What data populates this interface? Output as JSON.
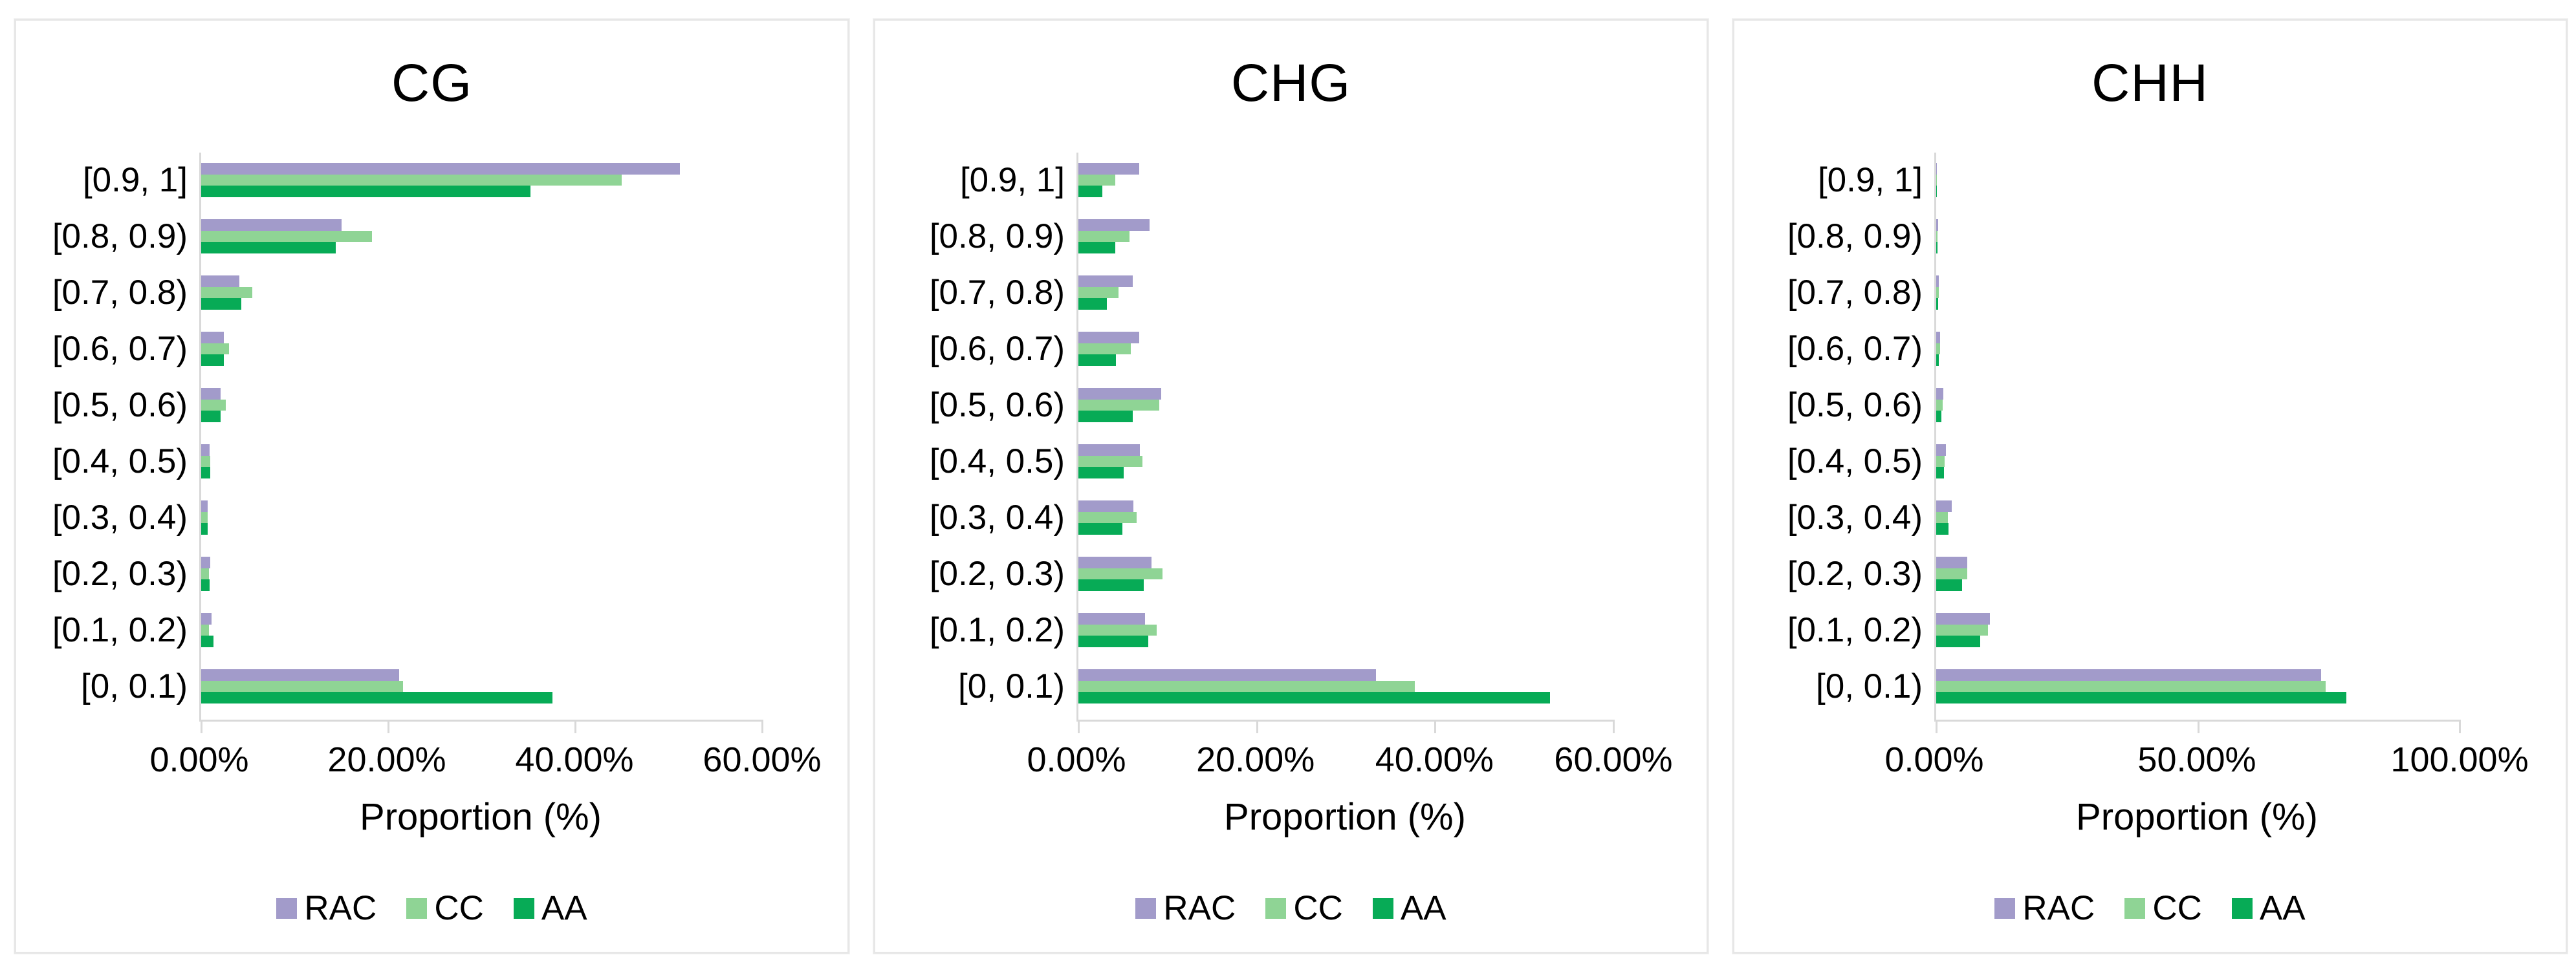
{
  "figure": {
    "description": "Three horizontal grouped bar charts of methylation level proportions",
    "legend_labels": [
      "RAC",
      "CC",
      "AA"
    ],
    "colors": {
      "RAC": "#a29bca",
      "CC": "#8fd495",
      "AA": "#07ab56",
      "axis": "#d9d9d9",
      "panel_border": "#e7e7e7"
    }
  },
  "chart_data": [
    {
      "type": "bar",
      "orientation": "horizontal",
      "title": "CG",
      "xlabel": "Proportion (%)",
      "categories": [
        "[0.9, 1]",
        "[0.8, 0.9)",
        "[0.7, 0.8)",
        "[0.6, 0.7)",
        "[0.5, 0.6)",
        "[0.4, 0.5)",
        "[0.3, 0.4)",
        "[0.2, 0.3)",
        "[0.1, 0.2)",
        "[0, 0.1)"
      ],
      "series": [
        {
          "name": "RAC",
          "color": "#a29bca",
          "values": [
            51.2,
            15.0,
            4.1,
            2.4,
            2.1,
            0.9,
            0.7,
            1.0,
            1.1,
            21.2
          ]
        },
        {
          "name": "CC",
          "color": "#8fd495",
          "values": [
            45.0,
            18.3,
            5.5,
            3.0,
            2.6,
            1.0,
            0.7,
            0.8,
            0.8,
            21.6
          ]
        },
        {
          "name": "AA",
          "color": "#07ab56",
          "values": [
            35.2,
            14.4,
            4.3,
            2.4,
            2.1,
            1.0,
            0.7,
            0.9,
            1.3,
            37.6
          ]
        }
      ],
      "ticks": [
        "0.00%",
        "20.00%",
        "40.00%",
        "60.00%"
      ],
      "tick_positions": [
        0,
        20,
        40,
        60
      ],
      "xlim": [
        0,
        60
      ],
      "grid": false,
      "legend_position": "bottom"
    },
    {
      "type": "bar",
      "orientation": "horizontal",
      "title": "CHG",
      "xlabel": "Proportion (%)",
      "categories": [
        "[0.9, 1]",
        "[0.8, 0.9)",
        "[0.7, 0.8)",
        "[0.6, 0.7)",
        "[0.5, 0.6)",
        "[0.4, 0.5)",
        "[0.3, 0.4)",
        "[0.2, 0.3)",
        "[0.1, 0.2)",
        "[0, 0.1)"
      ],
      "series": [
        {
          "name": "RAC",
          "color": "#a29bca",
          "values": [
            6.8,
            8.0,
            6.1,
            6.8,
            9.3,
            6.9,
            6.2,
            8.2,
            7.5,
            33.4
          ]
        },
        {
          "name": "CC",
          "color": "#8fd495",
          "values": [
            4.1,
            5.7,
            4.5,
            5.9,
            9.1,
            7.2,
            6.5,
            9.4,
            8.8,
            37.7
          ]
        },
        {
          "name": "AA",
          "color": "#07ab56",
          "values": [
            2.7,
            4.1,
            3.2,
            4.2,
            6.1,
            5.1,
            4.9,
            7.3,
            7.8,
            52.9
          ]
        }
      ],
      "ticks": [
        "0.00%",
        "20.00%",
        "40.00%",
        "60.00%"
      ],
      "tick_positions": [
        0,
        20,
        40,
        60
      ],
      "xlim": [
        0,
        60
      ],
      "grid": false,
      "legend_position": "bottom"
    },
    {
      "type": "bar",
      "orientation": "horizontal",
      "title": "CHH",
      "xlabel": "Proportion (%)",
      "categories": [
        "[0.9, 1]",
        "[0.8, 0.9)",
        "[0.7, 0.8)",
        "[0.6, 0.7)",
        "[0.5, 0.6)",
        "[0.4, 0.5)",
        "[0.3, 0.4)",
        "[0.2, 0.3)",
        "[0.1, 0.2)",
        "[0, 0.1)"
      ],
      "series": [
        {
          "name": "RAC",
          "color": "#a29bca",
          "values": [
            0.15,
            0.35,
            0.5,
            0.8,
            1.3,
            1.8,
            3.0,
            5.9,
            10.3,
            73.6
          ]
        },
        {
          "name": "CC",
          "color": "#8fd495",
          "values": [
            0.1,
            0.3,
            0.45,
            0.7,
            1.2,
            1.6,
            2.2,
            5.9,
            9.9,
            74.4
          ]
        },
        {
          "name": "AA",
          "color": "#07ab56",
          "values": [
            0.1,
            0.25,
            0.4,
            0.55,
            1.0,
            1.5,
            2.4,
            4.9,
            8.4,
            78.4
          ]
        }
      ],
      "ticks": [
        "0.00%",
        "50.00%",
        "100.00%"
      ],
      "tick_positions": [
        0,
        50,
        100
      ],
      "xlim": [
        0,
        100
      ],
      "grid": false,
      "legend_position": "bottom"
    }
  ]
}
